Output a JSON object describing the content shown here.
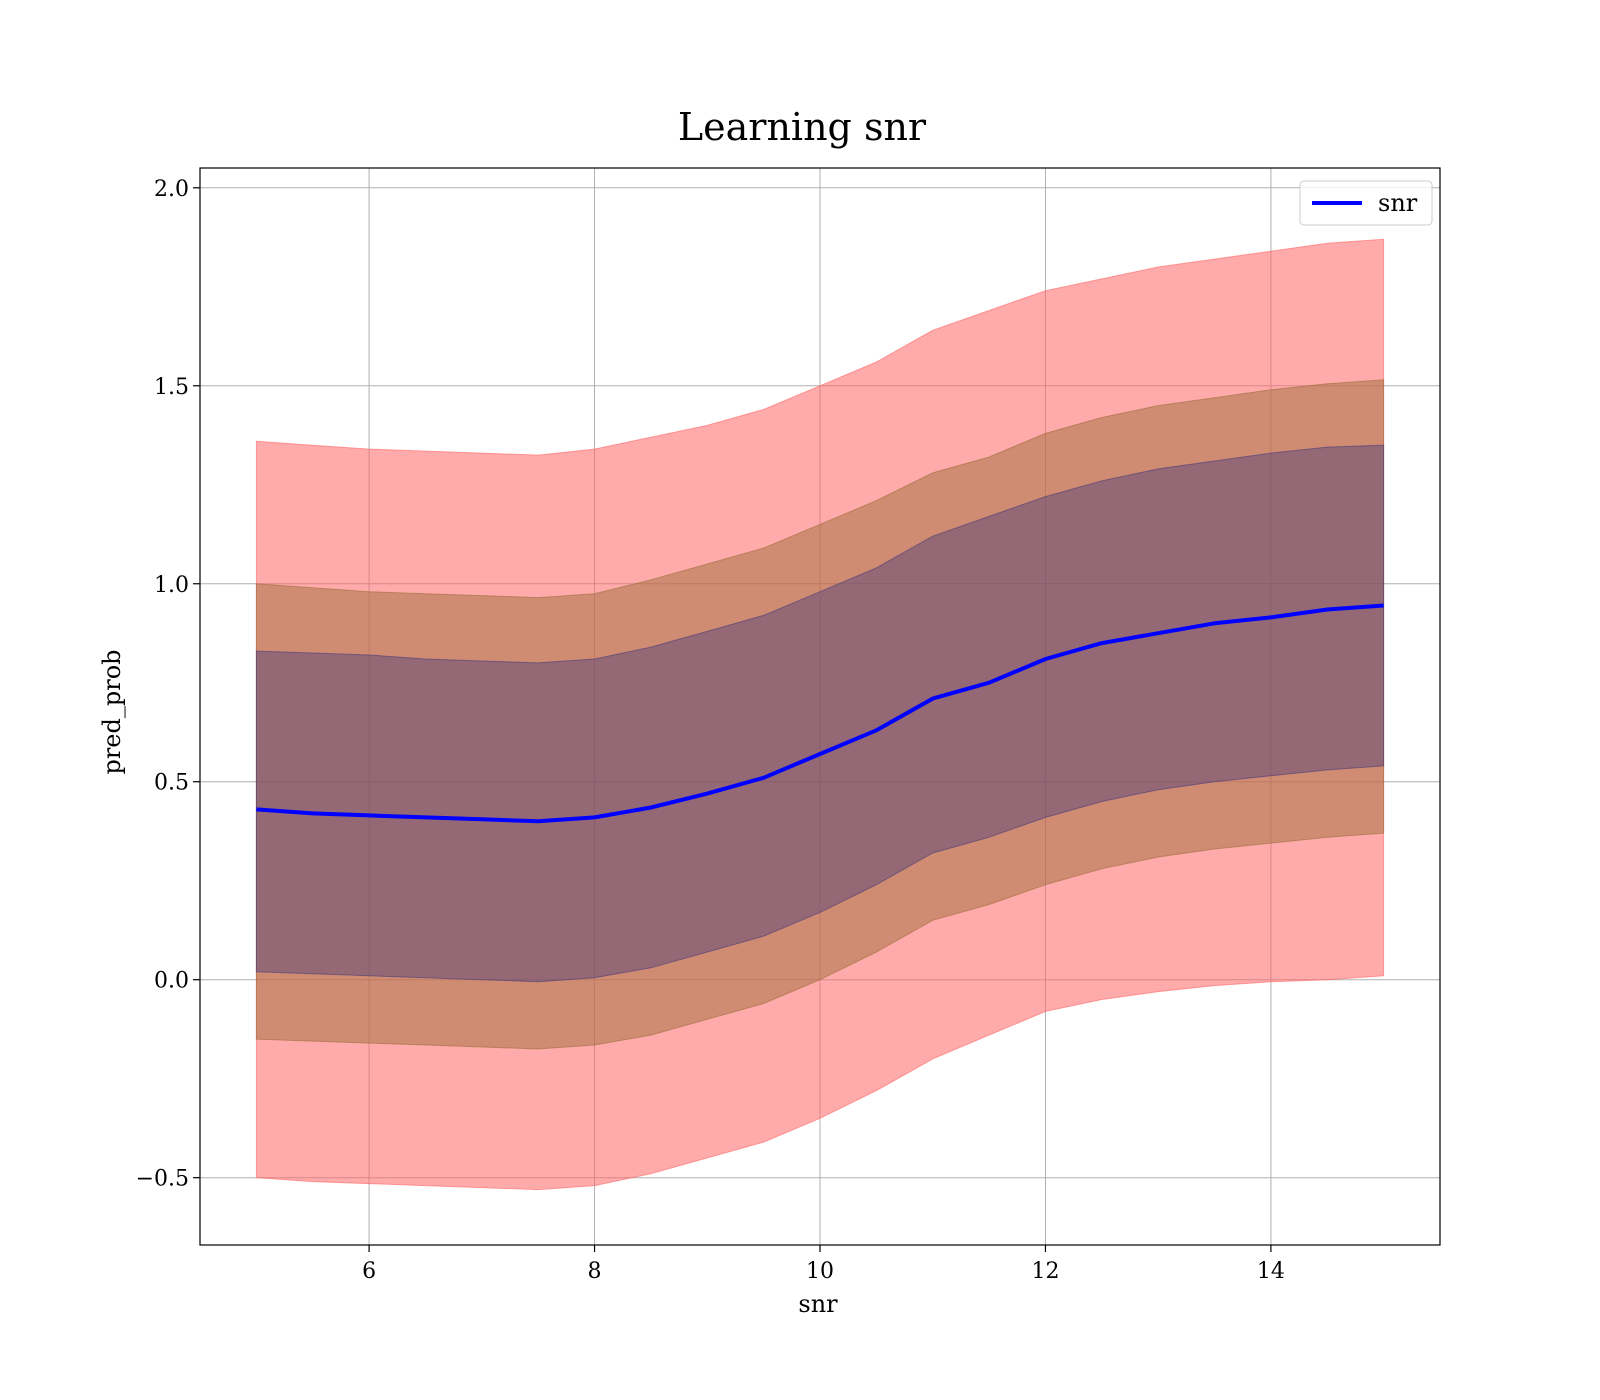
{
  "chart_data": {
    "type": "line",
    "title": "Learning snr",
    "xlabel": "snr",
    "ylabel": "pred_prob",
    "xlim": [
      4.5,
      15.5
    ],
    "ylim": [
      -0.67,
      2.05
    ],
    "xticks": [
      6,
      8,
      10,
      12,
      14
    ],
    "yticks": [
      -0.5,
      0.0,
      0.5,
      1.0,
      1.5,
      2.0
    ],
    "xtick_labels": [
      "6",
      "8",
      "10",
      "12",
      "14"
    ],
    "ytick_labels": [
      "−0.5",
      "0.0",
      "0.5",
      "1.0",
      "1.5",
      "2.0"
    ],
    "grid": true,
    "legend_position": "top-right",
    "x": [
      5.0,
      5.5,
      6.0,
      6.5,
      7.0,
      7.5,
      8.0,
      8.5,
      9.0,
      9.5,
      10.0,
      10.5,
      11.0,
      11.5,
      12.0,
      12.5,
      13.0,
      13.5,
      14.0,
      14.5,
      15.0
    ],
    "series": [
      {
        "name": "snr",
        "color": "#0000ff",
        "values": [
          0.43,
          0.42,
          0.415,
          0.41,
          0.405,
          0.4,
          0.41,
          0.435,
          0.47,
          0.51,
          0.57,
          0.63,
          0.71,
          0.75,
          0.81,
          0.85,
          0.875,
          0.9,
          0.915,
          0.935,
          0.945
        ]
      }
    ],
    "bands": [
      {
        "color": "#ff6666",
        "opacity": 0.55,
        "lower": [
          -0.5,
          -0.51,
          -0.515,
          -0.52,
          -0.525,
          -0.53,
          -0.52,
          -0.49,
          -0.45,
          -0.41,
          -0.35,
          -0.28,
          -0.2,
          -0.14,
          -0.08,
          -0.05,
          -0.03,
          -0.015,
          -0.005,
          0.0,
          0.01
        ],
        "upper": [
          1.36,
          1.35,
          1.34,
          1.335,
          1.33,
          1.325,
          1.34,
          1.37,
          1.4,
          1.44,
          1.5,
          1.56,
          1.64,
          1.69,
          1.74,
          1.77,
          1.8,
          1.82,
          1.84,
          1.86,
          1.87
        ]
      },
      {
        "color": "#a06e3c",
        "opacity": 0.5,
        "lower": [
          -0.15,
          -0.155,
          -0.16,
          -0.165,
          -0.17,
          -0.175,
          -0.165,
          -0.14,
          -0.1,
          -0.06,
          0.0,
          0.07,
          0.15,
          0.19,
          0.24,
          0.28,
          0.31,
          0.33,
          0.345,
          0.36,
          0.37
        ],
        "upper": [
          1.0,
          0.99,
          0.98,
          0.975,
          0.97,
          0.965,
          0.975,
          1.01,
          1.05,
          1.09,
          1.15,
          1.21,
          1.28,
          1.32,
          1.38,
          1.42,
          1.45,
          1.47,
          1.49,
          1.505,
          1.515
        ]
      },
      {
        "color": "#4b3c78",
        "opacity": 0.45,
        "lower": [
          0.02,
          0.015,
          0.01,
          0.005,
          0.0,
          -0.005,
          0.005,
          0.03,
          0.07,
          0.11,
          0.17,
          0.24,
          0.32,
          0.36,
          0.41,
          0.45,
          0.48,
          0.5,
          0.515,
          0.53,
          0.54
        ],
        "upper": [
          0.83,
          0.825,
          0.82,
          0.81,
          0.805,
          0.8,
          0.81,
          0.84,
          0.88,
          0.92,
          0.98,
          1.04,
          1.12,
          1.17,
          1.22,
          1.26,
          1.29,
          1.31,
          1.33,
          1.345,
          1.35
        ]
      }
    ]
  }
}
